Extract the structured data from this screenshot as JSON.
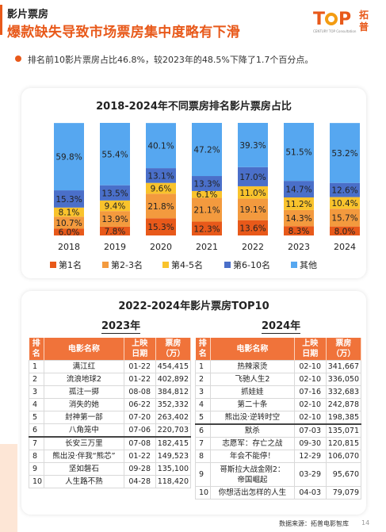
{
  "header": {
    "section": "影片票房",
    "headline": "爆款缺失导致市场票房集中度略有下滑",
    "logo_text_1": "T",
    "logo_text_2": "P",
    "logo_cn": "拓普",
    "logo_sub": "CENTURY TOP Consultation"
  },
  "bullet": "排名前10影片票房占比46.8%，较2023年的48.5%下降了1.7个百分点。",
  "chart_data": {
    "type": "bar",
    "title": "2018-2024年不同票房排名影片票房占比",
    "categories": [
      "2018",
      "2019",
      "2020",
      "2021",
      "2022",
      "2023",
      "2024"
    ],
    "series": [
      {
        "name": "第1名",
        "color": "#e8591a",
        "values": [
          6.0,
          7.8,
          15.3,
          12.3,
          13.6,
          8.3,
          8.0
        ],
        "labels": [
          "6.0%",
          "7.8%",
          "15.3%",
          "12.3%",
          "13.6%",
          "8.3%",
          "8.0%"
        ]
      },
      {
        "name": "第2-3名",
        "color": "#f39a3e",
        "values": [
          10.7,
          13.9,
          21.8,
          21.1,
          19.1,
          14.3,
          15.7
        ],
        "labels": [
          "10.7%",
          "13.9%",
          "21.8%",
          "21.1%",
          "19.1%",
          "14.3%",
          "15.7%"
        ]
      },
      {
        "name": "第4-5名",
        "color": "#f9c32c",
        "values": [
          8.1,
          9.4,
          9.6,
          6.1,
          11.0,
          11.2,
          10.4
        ],
        "labels": [
          "8.1%",
          "9.4%",
          "9.6%",
          "6.1%",
          "11.0%",
          "11.2%",
          "10.4%"
        ]
      },
      {
        "name": "第6-10名",
        "color": "#4a6fc9",
        "values": [
          15.3,
          13.5,
          13.1,
          13.3,
          17.0,
          14.7,
          12.6
        ],
        "labels": [
          "15.3%",
          "13.5%",
          "13.1%",
          "13.3%",
          "17.0%",
          "14.7%",
          "12.6%"
        ]
      },
      {
        "name": "其他",
        "color": "#56a7f0",
        "values": [
          59.8,
          55.4,
          40.1,
          47.2,
          39.3,
          51.5,
          53.2
        ],
        "labels": [
          "59.8%",
          "55.4%",
          "40.1%",
          "47.2%",
          "39.3%",
          "51.5%",
          "53.2%"
        ]
      }
    ],
    "ylim": [
      0,
      100
    ],
    "legend": "bottom"
  },
  "top10": {
    "title": "2022-2024年影片票房TOP10",
    "headers": [
      "排名",
      "电影名称",
      "上映日期",
      "票房(万)"
    ],
    "header_date_1": "上映",
    "header_date_2": "日期",
    "header_box_1": "票房",
    "header_box_2": "（万）",
    "year_2023": "2023年",
    "year_2024": "2024年",
    "rows_2023": [
      {
        "rank": "1",
        "film": "满江红",
        "date": "01-22",
        "box": "454,415"
      },
      {
        "rank": "2",
        "film": "流浪地球2",
        "date": "01-22",
        "box": "402,892"
      },
      {
        "rank": "3",
        "film": "孤注一掷",
        "date": "08-08",
        "box": "384,812"
      },
      {
        "rank": "4",
        "film": "消失的她",
        "date": "06-22",
        "box": "352,332"
      },
      {
        "rank": "5",
        "film": "封神第一部",
        "date": "07-20",
        "box": "263,402"
      },
      {
        "rank": "6",
        "film": "八角笼中",
        "date": "07-06",
        "box": "220,703"
      },
      {
        "rank": "7",
        "film": "长安三万里",
        "date": "07-08",
        "box": "182,415"
      },
      {
        "rank": "8",
        "film": "熊出没·伴我“熊芯”",
        "date": "01-22",
        "box": "149,523"
      },
      {
        "rank": "9",
        "film": "坚如磐石",
        "date": "09-28",
        "box": "135,100"
      },
      {
        "rank": "10",
        "film": "人生路不熟",
        "date": "04-28",
        "box": "118,420"
      }
    ],
    "rows_2024": [
      {
        "rank": "1",
        "film": "热辣滚烫",
        "date": "02-10",
        "box": "341,667"
      },
      {
        "rank": "2",
        "film": "飞驰人生2",
        "date": "02-10",
        "box": "336,050"
      },
      {
        "rank": "3",
        "film": "抓娃娃",
        "date": "07-16",
        "box": "332,683"
      },
      {
        "rank": "4",
        "film": "第二十条",
        "date": "02-10",
        "box": "242,878"
      },
      {
        "rank": "5",
        "film": "熊出没·逆转时空",
        "date": "02-10",
        "box": "198,385"
      },
      {
        "rank": "6",
        "film": "默杀",
        "date": "07-03",
        "box": "135,071"
      },
      {
        "rank": "7",
        "film": "志愿军：存亡之战",
        "date": "09-30",
        "box": "120,815"
      },
      {
        "rank": "8",
        "film": "年会不能停！",
        "date": "12-29",
        "box": "106,070"
      },
      {
        "rank": "9",
        "film": "哥斯拉大战金刚2：帝国崛起",
        "film_line1": "哥斯拉大战金刚2：",
        "film_line2": "帝国崛起",
        "date": "03-29",
        "box": "95,670"
      },
      {
        "rank": "10",
        "film": "你想活出怎样的人生",
        "date": "04-03",
        "box": "79,079"
      }
    ]
  },
  "footer": {
    "source": "数据来源：拓普电影智库",
    "page": "14"
  }
}
